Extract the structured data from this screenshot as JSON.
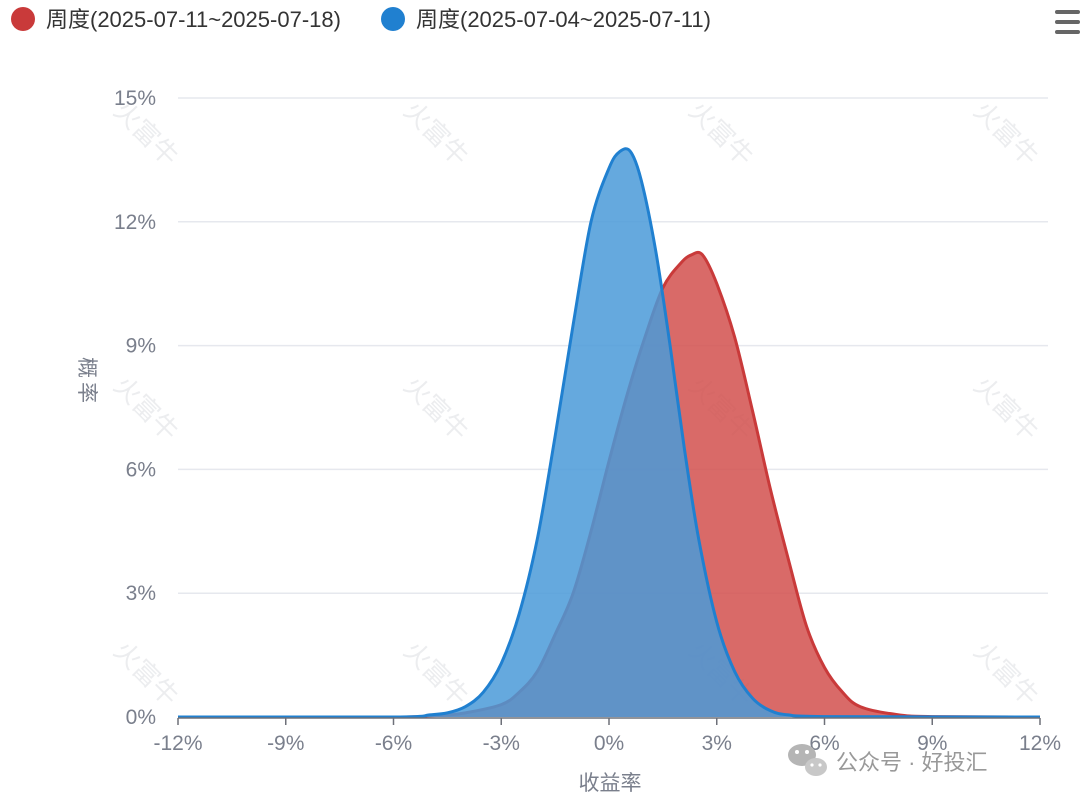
{
  "chart_data": {
    "type": "area",
    "xlabel": "收益率",
    "ylabel": "概率",
    "x_ticks": [
      "-12%",
      "-9%",
      "-6%",
      "-3%",
      "0%",
      "3%",
      "6%",
      "9%",
      "12%"
    ],
    "y_ticks": [
      "0%",
      "3%",
      "6%",
      "9%",
      "12%",
      "15%"
    ],
    "xlim": [
      -12,
      12
    ],
    "ylim": [
      0,
      15
    ],
    "grid": "horizontal",
    "legend_position": "top-left",
    "series": [
      {
        "name": "周度(2025-07-11~2025-07-18)",
        "color": "#c93a3a",
        "fill": "#d2504e",
        "x": [
          -12,
          -6,
          -5,
          -4.5,
          -4,
          -3,
          -2.5,
          -2,
          -1.5,
          -1,
          -0.5,
          0,
          0.5,
          1,
          1.5,
          2,
          2.3,
          2.6,
          3,
          3.5,
          4,
          4.5,
          5,
          5.5,
          6,
          6.5,
          7,
          8,
          9,
          12
        ],
        "y": [
          0,
          0,
          0.03,
          0.05,
          0.1,
          0.3,
          0.6,
          1.1,
          2.0,
          3.0,
          4.5,
          6.2,
          7.8,
          9.2,
          10.4,
          11.0,
          11.2,
          11.2,
          10.5,
          9.2,
          7.4,
          5.5,
          3.8,
          2.2,
          1.2,
          0.6,
          0.25,
          0.06,
          0.01,
          0
        ]
      },
      {
        "name": "周度(2025-07-04~2025-07-11)",
        "color": "#2080d0",
        "fill": "#4a9ad8",
        "x": [
          -12,
          -6,
          -5,
          -4.5,
          -4,
          -3.5,
          -3,
          -2.5,
          -2,
          -1.5,
          -1,
          -0.5,
          0,
          0.3,
          0.6,
          0.9,
          1.3,
          1.7,
          2.1,
          2.5,
          3,
          3.5,
          4,
          4.5,
          5,
          6,
          12
        ],
        "y": [
          0,
          0,
          0.05,
          0.1,
          0.25,
          0.6,
          1.3,
          2.5,
          4.3,
          6.8,
          9.5,
          12.0,
          13.3,
          13.7,
          13.7,
          13.0,
          11.3,
          9.0,
          6.5,
          4.3,
          2.3,
          1.1,
          0.45,
          0.15,
          0.05,
          0.01,
          0
        ]
      }
    ]
  },
  "watermark": {
    "text": "火富牛"
  },
  "wechat": {
    "text": "公众号 · 好投汇",
    "icon": "wechat-icon"
  },
  "menu": {
    "icon": "hamburger-menu-icon"
  }
}
